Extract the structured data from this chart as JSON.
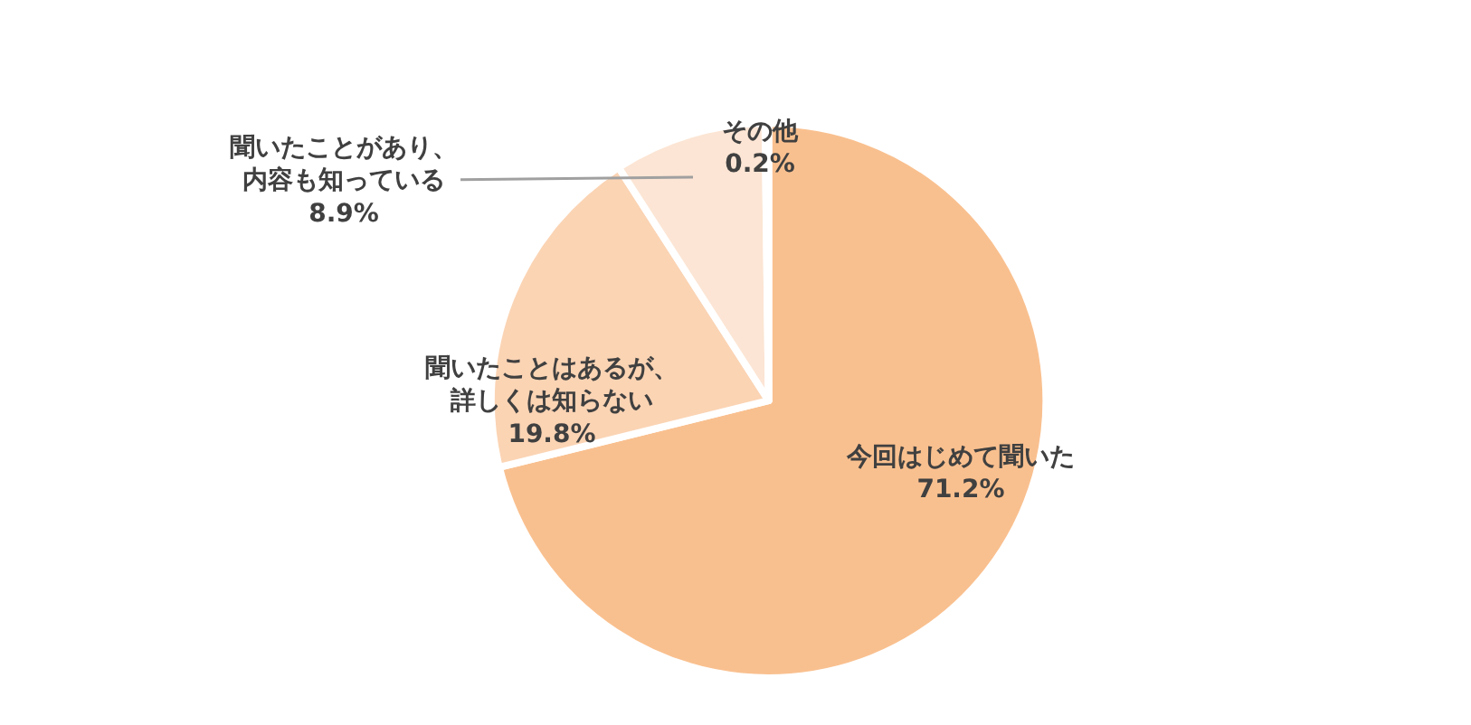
{
  "chart_data": {
    "type": "pie",
    "categories": [
      "今回はじめて聞いた",
      "聞いたことはあるが、詳しくは知らない",
      "聞いたことがあり、内容も知っている",
      "その他"
    ],
    "values": [
      71.2,
      19.8,
      8.9,
      0.2
    ],
    "value_labels": [
      "71.2%",
      "19.8%",
      "8.9%",
      "0.2%"
    ],
    "colors": [
      "#f9c08f",
      "#fbd4b4",
      "#fce5d4",
      "#fdeee4"
    ],
    "legend": false
  }
}
